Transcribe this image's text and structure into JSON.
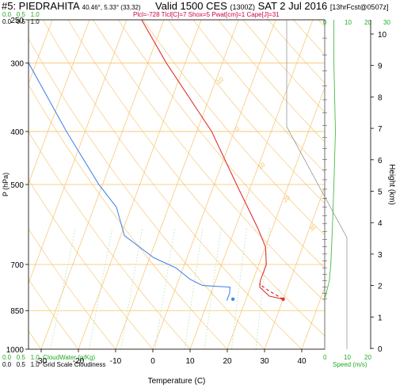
{
  "header": {
    "station": "#5: PIEDRAHITA",
    "location": "40.46°, 5.33° (33,32)",
    "valid": "Valid 1500 CES",
    "valid_utc": "(1300Z)",
    "date": "SAT 2 Jul 2016",
    "forecast": "[13hrFcst@0507z]",
    "parameters": "Plcl=-728 Tlcl[C]=7 Shox=5 Pwat[cm]=1 Cape[J]=31"
  },
  "top_scales": {
    "cloudwater_ticks": [
      "0.0",
      "0.5",
      "1.0"
    ],
    "cloudiness_ticks": [
      "0.0",
      "0.5",
      "1.0"
    ],
    "speed_ticks": [
      "0",
      "10",
      "20",
      "30"
    ]
  },
  "bottom_labels": {
    "cloudwater_ticks": [
      "0.0",
      "0.5",
      "1.0"
    ],
    "cloudwater_label": "CloudWater (g/Kg)",
    "cloudiness_ticks": [
      "0.0",
      "0.5",
      "1.0"
    ],
    "cloudiness_label": "Grid Scale Cloudiness",
    "speed_ticks": [
      "0",
      "10",
      "20"
    ],
    "speed_label": "Speed (m/s)"
  },
  "colors": {
    "isotherm": "#f5c266",
    "mixing": "#b9e3b0",
    "temperature": "#e23030",
    "dewpoint": "#4a86e8",
    "parcel": "#cc2222",
    "speed": "#44bb44",
    "barb": "#555555"
  },
  "chart_data": {
    "type": "line",
    "xlabel": "Temperature (C)",
    "ylabel": "P (hPa)",
    "y2label": "Height (km)",
    "x_ticks": [
      -30,
      -20,
      -10,
      0,
      10,
      20,
      30,
      40
    ],
    "p_ticks": [
      250,
      300,
      400,
      500,
      700,
      850,
      1000
    ],
    "height_ticks": [
      0,
      1,
      2,
      3,
      4,
      5,
      6,
      7,
      8,
      9,
      10
    ],
    "skewt_temp_labels": [
      "-10",
      "0",
      "10",
      "20",
      "30"
    ],
    "series": [
      {
        "points": [
          {
            "p": 810,
            "t": 30.0
          },
          {
            "p": 800,
            "t": 26.0
          },
          {
            "p": 770,
            "t": 22.5
          },
          {
            "p": 750,
            "t": 22.0
          },
          {
            "p": 700,
            "t": 22.0
          },
          {
            "p": 650,
            "t": 20.0
          },
          {
            "p": 600,
            "t": 16.0
          },
          {
            "p": 500,
            "t": 6.0
          },
          {
            "p": 400,
            "t": -6.0
          },
          {
            "p": 300,
            "t": -25.0
          },
          {
            "p": 250,
            "t": -36.0
          }
        ]
      },
      {
        "points": [
          {
            "p": 815,
            "t": 15.0
          },
          {
            "p": 790,
            "t": 15.0
          },
          {
            "p": 770,
            "t": 14.5
          },
          {
            "p": 765,
            "t": 7.0
          },
          {
            "p": 745,
            "t": 3.0
          },
          {
            "p": 710,
            "t": -2.0
          },
          {
            "p": 680,
            "t": -9.0
          },
          {
            "p": 620,
            "t": -19.0
          },
          {
            "p": 550,
            "t": -24.0
          },
          {
            "p": 500,
            "t": -31.0
          },
          {
            "p": 400,
            "t": -45.0
          },
          {
            "p": 300,
            "t": -62.0
          },
          {
            "p": 250,
            "t": -71.0
          }
        ]
      },
      {
        "points": [
          {
            "p": 810,
            "t": 30.0
          },
          {
            "p": 780,
            "t": 25.0
          },
          {
            "p": 760,
            "t": 22.0
          }
        ]
      }
    ],
    "surface_markers": [
      {
        "p": 810,
        "t": 30.0
      },
      {
        "p": 810,
        "t": 16.5
      }
    ],
    "speed_profile": [
      {
        "p": 810,
        "s": 0
      },
      {
        "p": 750,
        "s": 3
      },
      {
        "p": 700,
        "s": 4
      },
      {
        "p": 600,
        "s": 5
      },
      {
        "p": 500,
        "s": 6
      },
      {
        "p": 400,
        "s": 7
      },
      {
        "p": 300,
        "s": 6
      },
      {
        "p": 250,
        "s": 6
      }
    ],
    "cloudwater_profile": [],
    "cloudiness_profile": []
  }
}
